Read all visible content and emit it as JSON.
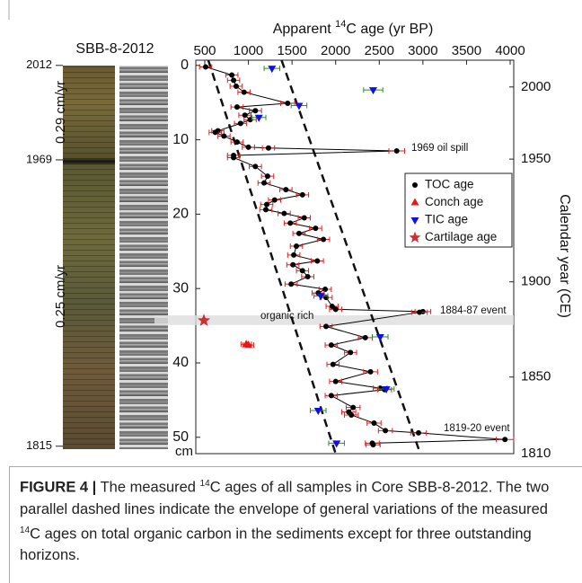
{
  "chart_data": {
    "type": "scatter",
    "x_label": [
      "Apparent ",
      "14",
      "C age (yr BP)"
    ],
    "y_label": "cm",
    "y2_label": "Calendar year (CE)",
    "xlim": [
      397,
      4041
    ],
    "xticks": [
      500,
      1000,
      1500,
      2000,
      2500,
      3000,
      3500,
      4000
    ],
    "ylim": [
      -0.7,
      52.2
    ],
    "yticks": [
      0,
      10,
      20,
      30,
      40,
      50
    ],
    "y_inverted": true,
    "y2ticks": [
      2000,
      1950,
      1900,
      1850,
      1810
    ],
    "y2tick_depths": [
      2.9,
      12.6,
      29.1,
      41.9,
      52.2
    ],
    "series": [
      {
        "name": "TOC age",
        "color": "#000000",
        "legend_color": "#000000",
        "error_color": "#e02020",
        "marker": "circle",
        "connect": true,
        "x": [
          510,
          810,
          830,
          860,
          950,
          1450,
          870,
          1080,
          960,
          1020,
          910,
          650,
          620,
          720,
          870,
          1000,
          1230,
          2700,
          830,
          830,
          1080,
          1220,
          1180,
          1430,
          1620,
          1300,
          1210,
          1200,
          1410,
          1640,
          1480,
          1770,
          1580,
          1860,
          1550,
          1520,
          1790,
          1510,
          1620,
          1680,
          1490,
          1880,
          1800,
          1890,
          1960,
          2000,
          3000,
          2960,
          1890,
          2340,
          1950,
          2170,
          1970,
          2400,
          2000,
          2510,
          2560,
          1950,
          2200,
          2150,
          2180,
          2440,
          2570,
          2950,
          3940,
          2420,
          2430
        ],
        "y": [
          0.2,
          1.3,
          2.0,
          2.8,
          3.6,
          5.1,
          5.6,
          6.1,
          6.7,
          7.3,
          7.8,
          8.8,
          9.0,
          9.5,
          10.3,
          11.0,
          11.1,
          11.5,
          12.1,
          12.4,
          13.6,
          14.9,
          15.8,
          16.7,
          17.4,
          18.1,
          18.7,
          19.4,
          19.9,
          20.5,
          21.2,
          21.9,
          22.6,
          23.4,
          24.3,
          25.5,
          26.3,
          26.8,
          27.6,
          28.4,
          29.4,
          30.1,
          30.6,
          31.2,
          32.4,
          32.8,
          33.1,
          33.2,
          35.1,
          36.6,
          37.6,
          38.6,
          40.2,
          41.2,
          42.5,
          43.4,
          43.6,
          44.4,
          46.0,
          46.6,
          47.0,
          48.1,
          49.1,
          49.4,
          50.3,
          50.8,
          51.0
        ],
        "errors": [
          70,
          70,
          70,
          70,
          70,
          80,
          70,
          70,
          70,
          70,
          70,
          70,
          70,
          70,
          70,
          70,
          70,
          90,
          70,
          70,
          70,
          70,
          70,
          70,
          70,
          70,
          70,
          70,
          70,
          70,
          70,
          70,
          70,
          70,
          70,
          70,
          70,
          70,
          70,
          70,
          70,
          70,
          70,
          70,
          70,
          70,
          90,
          90,
          70,
          80,
          70,
          70,
          70,
          80,
          70,
          80,
          80,
          70,
          80,
          80,
          80,
          80,
          80,
          90,
          100,
          80,
          80
        ]
      },
      {
        "name": "Conch age",
        "color": "#e81818",
        "legend_color": "#e81818",
        "error_color": "#e81818",
        "marker": "triangle-up",
        "connect": false,
        "x": [
          975,
          1000
        ],
        "y": [
          37.5,
          37.6
        ],
        "errors": [
          60,
          60
        ]
      },
      {
        "name": "TIC age",
        "color": "#1010e0",
        "legend_color": "#1010e0",
        "error_color": "#2e8b2e",
        "marker": "triangle-down",
        "connect": false,
        "x": [
          1270,
          2430,
          1580,
          1120,
          1830,
          2510,
          2580,
          1800,
          2010
        ],
        "y": [
          0.4,
          3.3,
          5.4,
          7.0,
          31.0,
          36.5,
          43.5,
          46.4,
          50.8
        ],
        "errors": [
          90,
          110,
          90,
          80,
          80,
          90,
          90,
          90,
          90
        ]
      },
      {
        "name": "Cartilage age",
        "color": "#c83232",
        "legend_color": "#000000",
        "marker": "star",
        "connect": false,
        "x": [
          490
        ],
        "y": [
          34.3
        ]
      }
    ],
    "envelope_lines": [
      {
        "x": [
          540,
          2000
        ],
        "y": [
          -0.7,
          52.2
        ]
      },
      {
        "x": [
          1380,
          2970
        ],
        "y": [
          -0.7,
          52.2
        ]
      }
    ],
    "highlight_band": [
      33.6,
      34.9
    ],
    "annotations": [
      "1969 oil spill",
      "1884-87 event",
      "1819-20 event",
      "organic rich"
    ],
    "legend": "upper right"
  },
  "core_panel": {
    "title": "SBB-8-2012",
    "year_labels": [
      "2012",
      "1969",
      "1815"
    ],
    "year_depths": [
      0,
      12.7,
      51.2
    ],
    "rate_labels": [
      "0.29 cm/yr",
      "0.25 cm/yr"
    ]
  },
  "caption": {
    "label": "FIGURE 4 |",
    "text": [
      "The measured ",
      "14",
      "C ages of all samples in Core SBB-8-2012. The two parallel dashed lines indicate the envelope of general variations of the measured ",
      "14",
      "C ages on total organic carbon in the sediments except for three outstanding horizons."
    ]
  }
}
